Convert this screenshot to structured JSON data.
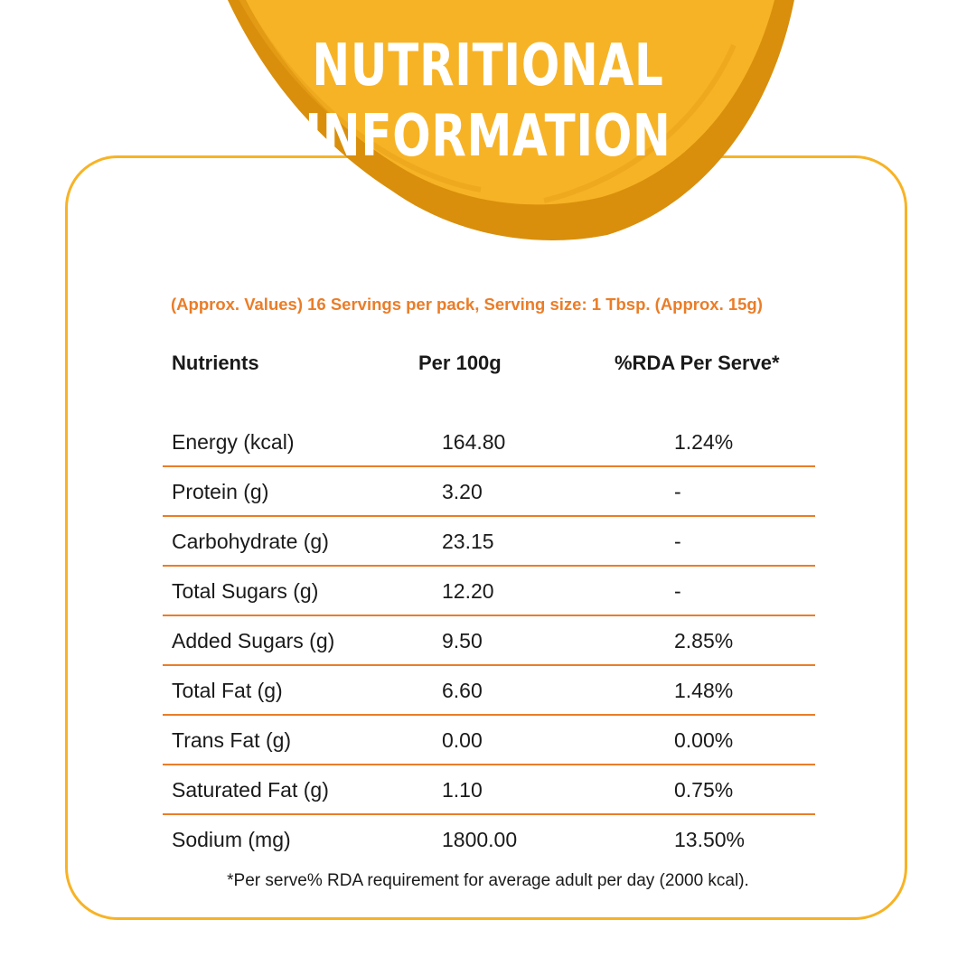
{
  "title": {
    "line1": "NUTRITIONAL",
    "line2": "INFORMATION"
  },
  "colors": {
    "blob_fill": "#f7b326",
    "blob_shadow": "#d98f0b",
    "accent": "#ea7d28",
    "card_border": "#f7b326"
  },
  "subtitle": "(Approx. Values) 16 Servings per pack, Serving size: 1 Tbsp. (Approx. 15g)",
  "table": {
    "headers": [
      "Nutrients",
      "Per 100g",
      "%RDA Per Serve*"
    ],
    "rows": [
      [
        "Energy (kcal)",
        "164.80",
        "1.24%"
      ],
      [
        "Protein (g)",
        "3.20",
        "-"
      ],
      [
        "Carbohydrate (g)",
        "23.15",
        "-"
      ],
      [
        "Total Sugars (g)",
        "12.20",
        "-"
      ],
      [
        "Added Sugars (g)",
        "9.50",
        "2.85%"
      ],
      [
        "Total Fat (g)",
        "6.60",
        "1.48%"
      ],
      [
        "Trans Fat (g)",
        "0.00",
        "0.00%"
      ],
      [
        "Saturated Fat (g)",
        "1.10",
        "0.75%"
      ],
      [
        "Sodium (mg)",
        "1800.00",
        "13.50%"
      ]
    ]
  },
  "footnote": "*Per serve% RDA requirement for average adult per day (2000 kcal)."
}
